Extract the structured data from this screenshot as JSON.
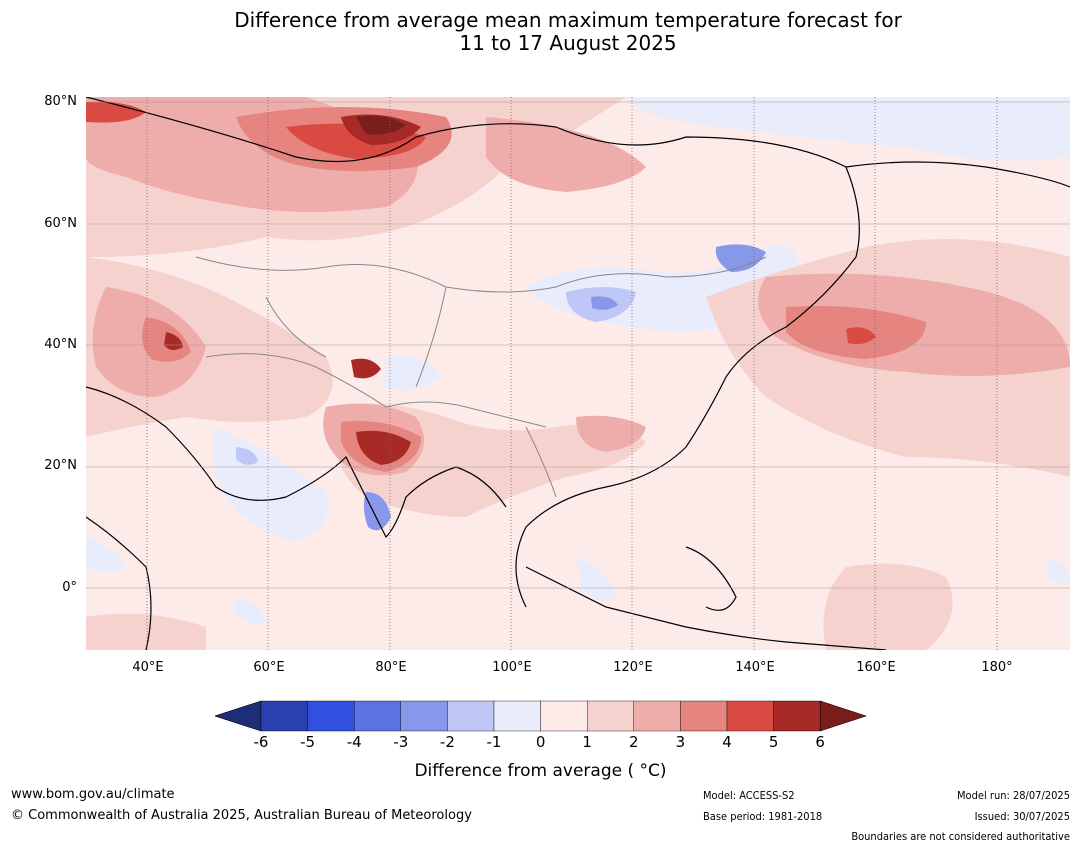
{
  "title": {
    "line1": "Difference from average mean maximum temperature forecast for",
    "line2": "11 to 17 August 2025"
  },
  "map": {
    "region": "Asia and surrounding ocean",
    "lat_labels": [
      "80°N",
      "60°N",
      "40°N",
      "20°N",
      "0°"
    ],
    "lon_labels": [
      "40°E",
      "60°E",
      "80°E",
      "100°E",
      "120°E",
      "140°E",
      "160°E",
      "180°"
    ]
  },
  "legend": {
    "ticks": [
      "-6",
      "-5",
      "-4",
      "-3",
      "-2",
      "-1",
      "0",
      "1",
      "2",
      "3",
      "4",
      "5",
      "6"
    ],
    "colors": [
      "#1d2d78",
      "#2a3fb0",
      "#3150e0",
      "#5d72e3",
      "#8797e9",
      "#bec7f5",
      "#e8ecfb",
      "#fcebe9",
      "#f6d2ce",
      "#eeadaa",
      "#e68580",
      "#d94a42",
      "#a82a26",
      "#7a1e1c"
    ],
    "label": "Difference from average ( °C)"
  },
  "footer": {
    "website": "www.bom.gov.au/climate",
    "copyright": "© Commonwealth of Australia 2025, Australian Bureau of Meteorology",
    "model": "Model: ACCESS-S2",
    "base_period": "Base period: 1981-2018",
    "model_run": "Model run: 28/07/2025",
    "issued": "Issued: 30/07/2025",
    "disclaimer": "Boundaries are not considered authoritative"
  }
}
